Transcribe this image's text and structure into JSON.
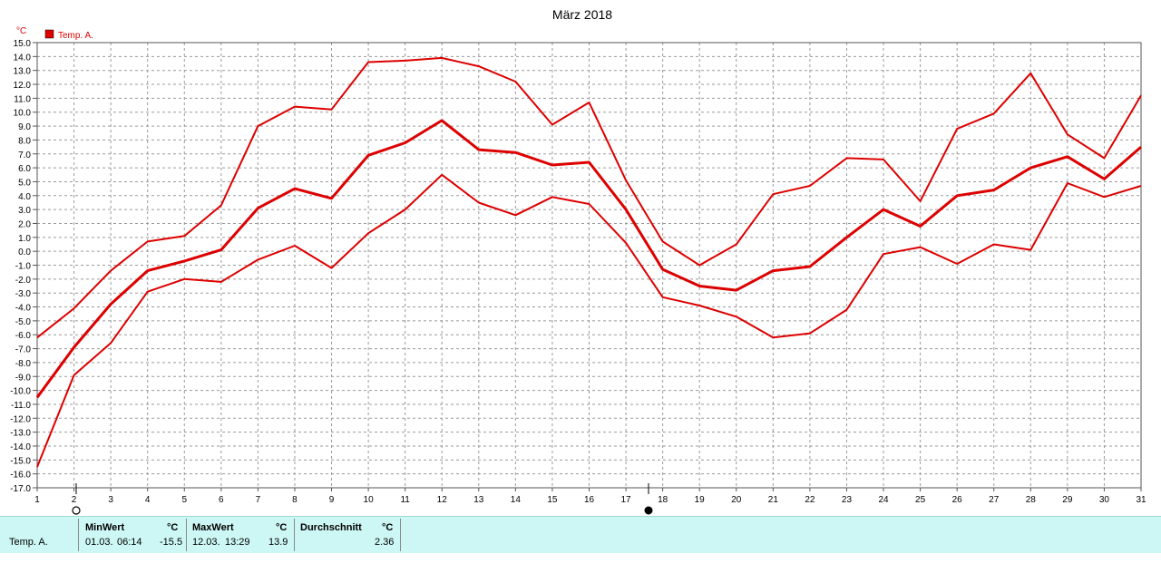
{
  "chart_data": {
    "type": "line",
    "title": "März 2018",
    "unit_label": "°C",
    "legend": "Temp. A.",
    "color": "#dd0000",
    "xlim": [
      1,
      31
    ],
    "ylim": [
      -17,
      15
    ],
    "x_ticks": [
      "1",
      "2",
      "3",
      "4",
      "5",
      "6",
      "7",
      "8",
      "9",
      "10",
      "11",
      "12",
      "13",
      "14",
      "15",
      "16",
      "17",
      "18",
      "19",
      "20",
      "21",
      "22",
      "23",
      "24",
      "25",
      "26",
      "27",
      "28",
      "29",
      "30",
      "31"
    ],
    "y_ticks": [
      "15.0",
      "14.0",
      "13.0",
      "12.0",
      "11.0",
      "10.0",
      "9.0",
      "8.0",
      "7.0",
      "6.0",
      "5.0",
      "4.0",
      "3.0",
      "2.0",
      "1.0",
      "0.0",
      "-1.0",
      "-2.0",
      "-3.0",
      "-4.0",
      "-5.0",
      "-6.0",
      "-7.0",
      "-8.0",
      "-9.0",
      "-10.0",
      "-11.0",
      "-12.0",
      "-13.0",
      "-14.0",
      "-15.0",
      "-16.0",
      "-17.0"
    ],
    "grid": true,
    "series": [
      {
        "role": "max",
        "values": [
          -6.2,
          -4.1,
          -1.4,
          0.7,
          1.1,
          3.3,
          9.0,
          10.4,
          10.2,
          13.6,
          13.7,
          13.9,
          13.3,
          12.2,
          9.1,
          10.7,
          5.1,
          0.7,
          -1.0,
          0.5,
          4.1,
          4.7,
          6.7,
          6.6,
          3.6,
          8.8,
          9.9,
          12.8,
          8.4,
          6.7,
          11.2
        ]
      },
      {
        "role": "avg",
        "values": [
          -10.5,
          -6.9,
          -3.8,
          -1.4,
          -0.7,
          0.1,
          3.1,
          4.5,
          3.8,
          6.9,
          7.8,
          9.4,
          7.3,
          7.1,
          6.2,
          6.4,
          3.0,
          -1.3,
          -2.5,
          -2.8,
          -1.4,
          -1.1,
          1.0,
          3.0,
          1.8,
          4.0,
          4.4,
          6.0,
          6.8,
          5.2,
          7.5
        ]
      },
      {
        "role": "min",
        "values": [
          -15.5,
          -8.9,
          -6.6,
          -2.9,
          -2.0,
          -2.2,
          -0.6,
          0.4,
          -1.2,
          1.3,
          3.0,
          5.5,
          3.5,
          2.6,
          3.9,
          3.4,
          0.6,
          -3.3,
          -3.9,
          -4.7,
          -6.2,
          -5.9,
          -4.2,
          -0.2,
          0.3,
          -0.9,
          0.5,
          0.1,
          4.9,
          3.9,
          4.7
        ]
      }
    ]
  },
  "stats": {
    "series_label": "Temp. A.",
    "min_header": "MinWert",
    "max_header": "MaxWert",
    "avg_header": "Durchschnitt",
    "unit": "°C",
    "min_date": "01.03.",
    "min_time": "06:14",
    "min_value": "-15.5",
    "max_date": "12.03.",
    "max_time": "13:29",
    "max_value": "13.9",
    "avg_value": "2.36"
  }
}
